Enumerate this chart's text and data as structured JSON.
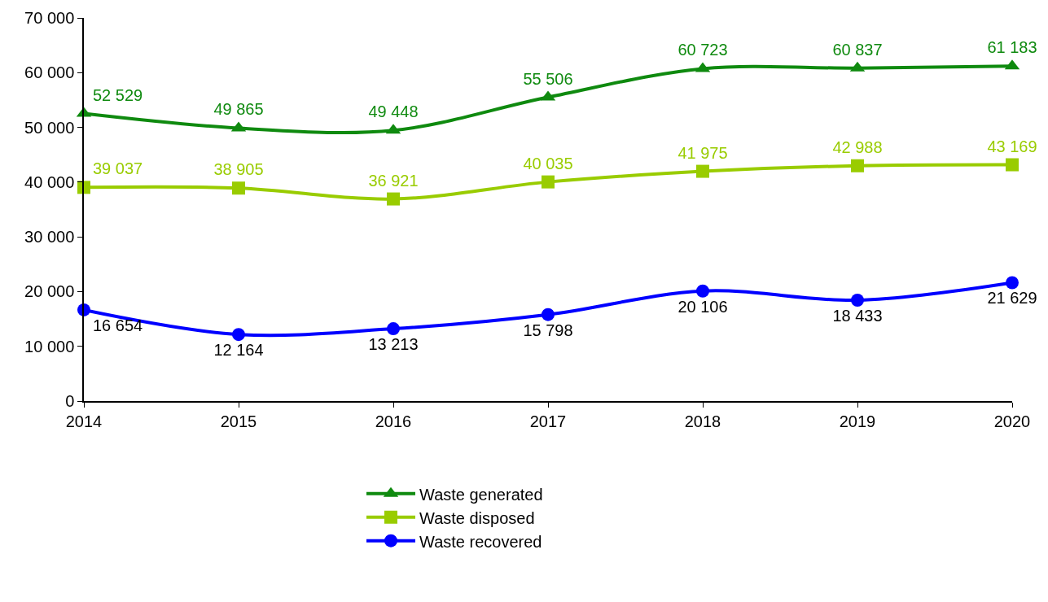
{
  "chart_data": {
    "type": "line",
    "categories": [
      "2014",
      "2015",
      "2016",
      "2017",
      "2018",
      "2019",
      "2020"
    ],
    "series": [
      {
        "name": "Waste generated",
        "color": "#0f8a0f",
        "marker": "triangle",
        "values": [
          52529,
          49865,
          49448,
          55506,
          60723,
          60837,
          61183
        ],
        "value_labels": [
          "52 529",
          "49 865",
          "49 448",
          "55 506",
          "60 723",
          "60 837",
          "61 183"
        ]
      },
      {
        "name": "Waste disposed",
        "color": "#99cc00",
        "marker": "square",
        "values": [
          39037,
          38905,
          36921,
          40035,
          41975,
          42988,
          43169
        ],
        "value_labels": [
          "39 037",
          "38 905",
          "36 921",
          "40 035",
          "41 975",
          "42 988",
          "43 169"
        ]
      },
      {
        "name": "Waste recovered",
        "color": "#0000ff",
        "marker": "circle",
        "values": [
          16654,
          12164,
          13213,
          15798,
          20106,
          18433,
          21629
        ],
        "value_labels": [
          "16 654",
          "12 164",
          "13 213",
          "15 798",
          "20 106",
          "18 433",
          "21 629"
        ]
      }
    ],
    "ylim": [
      0,
      70000
    ],
    "yticks": [
      {
        "value": 0,
        "label": "0"
      },
      {
        "value": 10000,
        "label": "10 000"
      },
      {
        "value": 20000,
        "label": "20 000"
      },
      {
        "value": 30000,
        "label": "30 000"
      },
      {
        "value": 40000,
        "label": "40 000"
      },
      {
        "value": 50000,
        "label": "50 000"
      },
      {
        "value": 60000,
        "label": "60 000"
      },
      {
        "value": 70000,
        "label": "70 000"
      }
    ],
    "grid": false,
    "legend": "bottom",
    "line_style": "solid"
  }
}
